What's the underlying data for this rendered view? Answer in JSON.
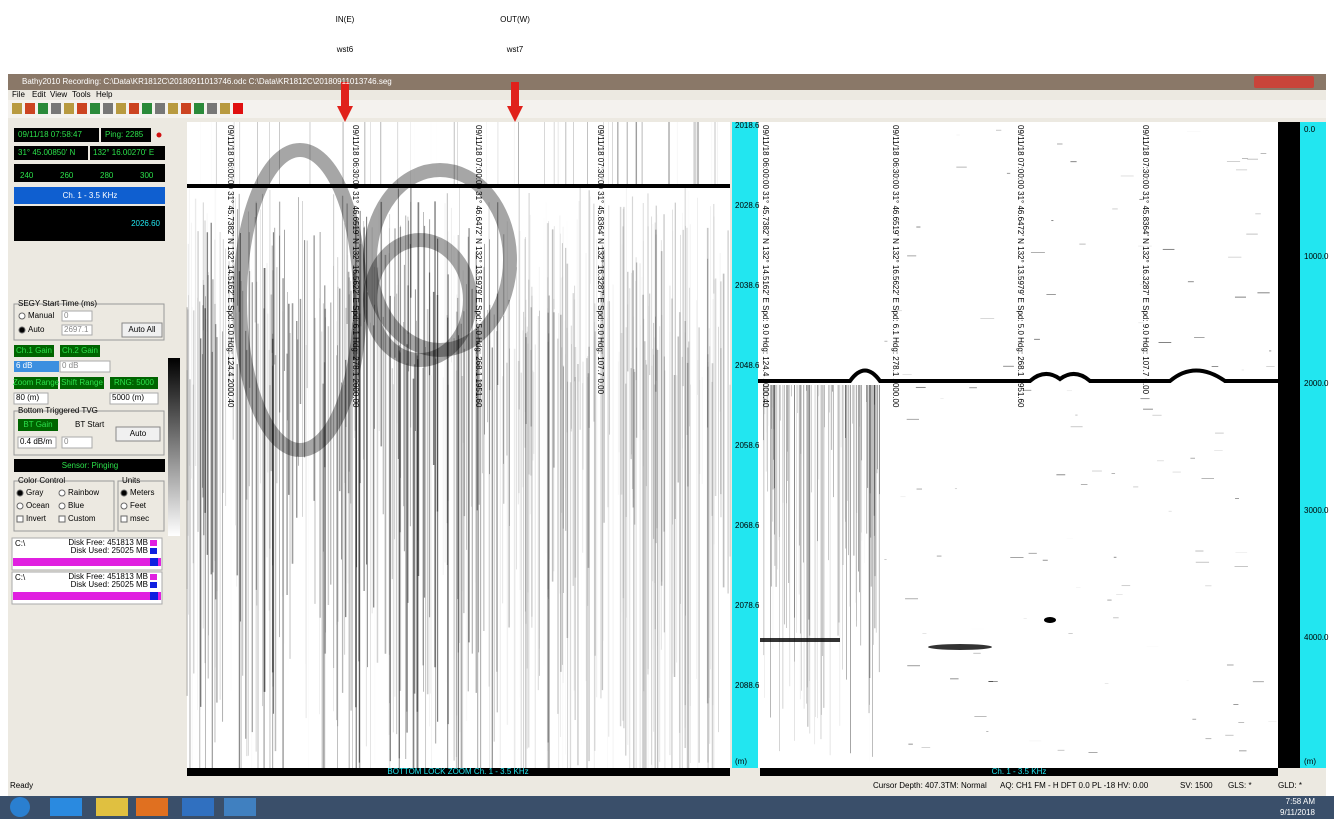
{
  "annotations": [
    {
      "label": "IN(E)",
      "station": "wst6"
    },
    {
      "label": "OUT(W)",
      "station": "wst7"
    }
  ],
  "window": {
    "title": "Bathy2010 Recording: C:\\Data\\KR1812C\\20180911013746.odc C:\\Data\\KR1812C\\20180911013746.seg",
    "menu": [
      "File",
      "Edit",
      "View",
      "Tools",
      "Help"
    ]
  },
  "left_panel": {
    "datetime": "09/11/18 07:58:47",
    "ping": "Ping: 2285",
    "latitude": "31° 45.00850' N",
    "longitude": "132° 16.00270' E",
    "compass": [
      "240",
      "260",
      "280",
      "300"
    ],
    "channel": "Ch. 1 - 3.5 KHz",
    "depth": "2026.60",
    "segy": {
      "title": "SEGY Start Time (ms)",
      "manual": "Manual",
      "manual_value": "0",
      "auto": "Auto",
      "auto_value": "2697.1",
      "auto_all": "Auto All"
    },
    "gain": {
      "ch1": "Ch.1 Gain",
      "ch2": "Ch.2 Gain",
      "ch1_value": "6 dB",
      "ch2_value": "0 dB"
    },
    "range": {
      "zoom": "Zoom Range",
      "shift": "Shift Range",
      "rng": "RNG: 5000",
      "zoom_value": "80 (m)",
      "shift_value": "5000 (m)"
    },
    "tvg": {
      "title": "Bottom Triggered TVG",
      "bt_gain": "BT Gain",
      "bt_start": "BT Start",
      "auto": "Auto",
      "gain_value": "0.4 dB/m",
      "start_value": "0"
    },
    "sensor": "Sensor: Pinging",
    "color_control": {
      "title": "Color Control",
      "options": [
        "Gray",
        "Rainbow",
        "Ocean",
        "Blue",
        "Invert",
        "Custom"
      ]
    },
    "units": {
      "title": "Units",
      "options": [
        "Meters",
        "Feet",
        "msec"
      ]
    },
    "disks": [
      {
        "drive": "C:\\",
        "free": "Disk Free: 451813 MB",
        "used": "Disk Used: 25025 MB"
      },
      {
        "drive": "C:\\",
        "free": "Disk Free: 451813 MB",
        "used": "Disk Used: 25025 MB"
      }
    ]
  },
  "echogram_labels": [
    "09/11/18 06:00:00 31° 45.7382' N 132° 14.5162' E Spd: 9.0 Hdg: 124.4 2000.40",
    "09/11/18 06:30:00 31° 46.6519' N 132° 16.5622' E Spd: 6.1 Hdg: 278.1 2000.00",
    "09/11/18 07:00:00 31° 46.6472' N 132° 13.5979' E Spd: 5.0 Hdg: 268.1 1951.60",
    "09/11/18 07:30:00 31° 45.8364' N 132° 16.3287' E Spd: 9.0 Hdg: 107.7 0.00"
  ],
  "left_echogram": {
    "caption": "BOTTOM LOCK ZOOM Ch. 1 - 3.5 KHz",
    "depth_ticks": [
      "2018.6",
      "2028.6",
      "2038.6",
      "2048.6",
      "2058.6",
      "2068.6",
      "2078.6",
      "2088.6",
      "(m)"
    ]
  },
  "right_echogram": {
    "caption": "Ch. 1 - 3.5 KHz",
    "depth_ticks": [
      "0.0",
      "1000.0",
      "2000.0",
      "3000.0",
      "4000.0",
      "(m)"
    ]
  },
  "status_bar": [
    "Ready",
    "Cursor Depth: 407.3",
    "TM: Normal",
    "AQ: CH1 FM - H DFT 0.0 PL -18 HV: 0.00",
    "SV: 1500",
    "GLS: *",
    "GLD: *"
  ],
  "taskbar": {
    "time": "7:58 AM",
    "date": "9/11/2018"
  }
}
